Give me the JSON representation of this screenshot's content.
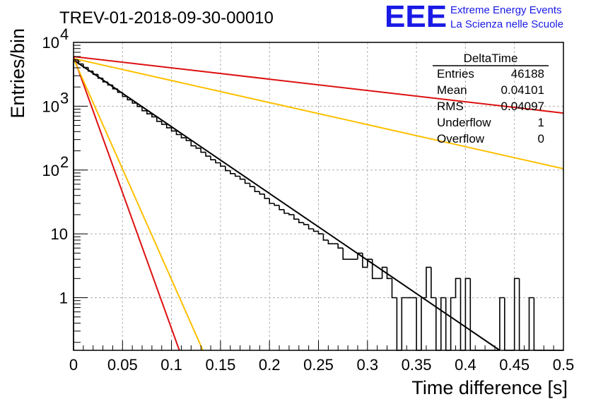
{
  "chart_data": {
    "type": "bar",
    "title": "TREV-01-2018-09-30-00010",
    "xlabel": "Time difference [s]",
    "ylabel": "Entries/bin",
    "xlim": [
      0,
      0.5
    ],
    "ylim": [
      0.15,
      10000
    ],
    "yscale": "log",
    "grid": true,
    "x_ticks": [
      "0",
      "0.05",
      "0.1",
      "0.15",
      "0.2",
      "0.25",
      "0.3",
      "0.35",
      "0.4",
      "0.45",
      "0.5"
    ],
    "y_ticks": [
      {
        "value": 1,
        "label": "1"
      },
      {
        "value": 10,
        "label": "10"
      },
      {
        "value": 100,
        "label": "10",
        "exp": "2"
      },
      {
        "value": 1000,
        "label": "10",
        "exp": "3"
      },
      {
        "value": 10000,
        "label": "10",
        "exp": "4"
      }
    ],
    "bin_width": 0.005,
    "histogram": {
      "name": "DeltaTime",
      "color": "#000000",
      "values": [
        5300,
        4600,
        4050,
        3550,
        3150,
        2750,
        2400,
        2150,
        1870,
        1650,
        1420,
        1260,
        1120,
        990,
        850,
        760,
        680,
        580,
        520,
        460,
        410,
        360,
        320,
        290,
        240,
        220,
        190,
        165,
        145,
        130,
        115,
        98,
        88,
        80,
        72,
        62,
        55,
        46,
        42,
        36,
        30,
        28,
        24,
        21,
        20,
        17,
        15,
        14,
        12,
        11,
        10,
        8,
        7,
        7,
        6,
        4,
        4,
        4,
        5,
        3,
        4,
        2,
        2,
        3,
        2,
        1,
        0,
        1,
        1,
        1,
        0,
        1,
        3,
        1,
        0,
        1,
        0,
        1,
        2,
        0,
        2,
        0,
        0,
        0,
        0,
        0,
        0,
        1,
        0,
        0,
        2,
        0,
        0,
        1,
        0,
        0,
        0,
        0,
        0,
        0
      ]
    },
    "fit_lines": [
      {
        "color": "#000000",
        "x": [
          0,
          0.435
        ],
        "y": [
          5300,
          0.15
        ]
      },
      {
        "color": "#dd1111",
        "x": [
          0,
          0.5
        ],
        "y": [
          6000,
          780
        ]
      },
      {
        "color": "#ffc000",
        "x": [
          0,
          0.5
        ],
        "y": [
          5600,
          105
        ]
      },
      {
        "color": "#dd1111",
        "x": [
          0,
          0.108
        ],
        "y": [
          6000,
          0.15
        ]
      },
      {
        "color": "#ffc000",
        "x": [
          0,
          0.132
        ],
        "y": [
          5600,
          0.15
        ]
      }
    ]
  },
  "stats_box": {
    "title": "DeltaTime",
    "rows": [
      {
        "label": "Entries",
        "value": "46188"
      },
      {
        "label": "Mean",
        "value": "0.04101"
      },
      {
        "label": "RMS",
        "value": "0.04097"
      },
      {
        "label": "Underflow",
        "value": "1"
      },
      {
        "label": "Overflow",
        "value": "0"
      }
    ]
  },
  "logo": {
    "text": "EEE",
    "line1": "Extreme Energy Events",
    "line2": "La Scienza nelle Scuole",
    "color": "#1a1ae6"
  }
}
